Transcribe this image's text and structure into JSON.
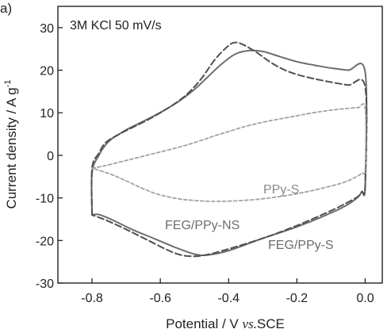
{
  "panel_label": "a)",
  "chart_data": {
    "type": "line",
    "annotation": "3M KCl 50 mV/s",
    "xlabel_prefix": "Potential / V ",
    "xlabel_vs": "vs.",
    "xlabel_suffix": "SCE",
    "ylabel_main": "Current density / A g",
    "ylabel_sup": "-1",
    "xlim": [
      -0.9,
      0.05
    ],
    "ylim": [
      -30,
      35
    ],
    "xticks": [
      -0.8,
      -0.6,
      -0.4,
      -0.2,
      0.0
    ],
    "xtick_labels": [
      "-0.8",
      "-0.6",
      "-0.4",
      "-0.2",
      "0.0"
    ],
    "yticks": [
      -30,
      -20,
      -10,
      0,
      10,
      20,
      30
    ],
    "ytick_labels": [
      "-30",
      "-20",
      "-10",
      "0",
      "10",
      "20",
      "30"
    ],
    "grid": false,
    "colors": {
      "solid": "#6d6d6d",
      "dashed": "#505050",
      "dotted": "#a2a2a2",
      "axis": "#222222",
      "label_grey": "#8a8a8a"
    },
    "series": [
      {
        "name": "FEG/PPy-S",
        "style": "solid",
        "x": [
          -0.8,
          -0.8,
          -0.78,
          -0.76,
          -0.74,
          -0.72,
          -0.7,
          -0.66,
          -0.62,
          -0.58,
          -0.54,
          -0.5,
          -0.46,
          -0.42,
          -0.38,
          -0.34,
          -0.3,
          -0.25,
          -0.2,
          -0.15,
          -0.1,
          -0.05,
          0.0,
          0.0,
          -0.01,
          -0.02,
          -0.05,
          -0.1,
          -0.2,
          -0.3,
          -0.4,
          -0.46,
          -0.5,
          -0.56,
          -0.62,
          -0.68,
          -0.74,
          -0.78,
          -0.8
        ],
        "y": [
          -14,
          -4,
          0,
          2.5,
          4,
          5,
          6,
          7.6,
          9.2,
          11,
          13,
          15.5,
          18.5,
          21.5,
          23.8,
          24.6,
          24.4,
          23.2,
          22.0,
          21.2,
          20.5,
          20.0,
          19.5,
          -7,
          -8.5,
          -9.7,
          -11.5,
          -13.5,
          -16.8,
          -19.5,
          -22.4,
          -23.4,
          -23.2,
          -21.5,
          -19.5,
          -17.5,
          -15.2,
          -13.9,
          -14
        ]
      },
      {
        "name": "FEG/PPy-NS",
        "style": "dashed",
        "x": [
          -0.8,
          -0.8,
          -0.78,
          -0.76,
          -0.72,
          -0.68,
          -0.64,
          -0.6,
          -0.56,
          -0.52,
          -0.48,
          -0.44,
          -0.4,
          -0.38,
          -0.36,
          -0.32,
          -0.28,
          -0.24,
          -0.2,
          -0.15,
          -0.1,
          -0.05,
          0.0,
          0.0,
          -0.01,
          -0.02,
          -0.05,
          -0.1,
          -0.2,
          -0.3,
          -0.4,
          -0.46,
          -0.5,
          -0.54,
          -0.58,
          -0.64,
          -0.7,
          -0.76,
          -0.8
        ],
        "y": [
          -14,
          -3,
          0.5,
          3,
          5,
          6.6,
          8.2,
          10,
          12,
          14.5,
          18,
          22.5,
          25.8,
          26.5,
          26.1,
          24.3,
          22.0,
          20.2,
          19.0,
          18.0,
          17.2,
          16.5,
          16,
          -7,
          -8.5,
          -9.6,
          -11,
          -13,
          -16.5,
          -19.5,
          -22.0,
          -23.3,
          -23.7,
          -23.4,
          -22.2,
          -19.8,
          -17.4,
          -15.2,
          -14
        ]
      },
      {
        "name": "PPy-S",
        "style": "dotted",
        "x": [
          -0.8,
          -0.76,
          -0.72,
          -0.68,
          -0.64,
          -0.6,
          -0.56,
          -0.52,
          -0.48,
          -0.44,
          -0.4,
          -0.36,
          -0.32,
          -0.28,
          -0.24,
          -0.2,
          -0.16,
          -0.12,
          -0.08,
          -0.04,
          -0.02,
          0.0,
          0.0,
          -0.01,
          -0.03,
          -0.06,
          -0.1,
          -0.14,
          -0.18,
          -0.22,
          -0.26,
          -0.3,
          -0.34,
          -0.38,
          -0.42,
          -0.46,
          -0.5,
          -0.54,
          -0.58,
          -0.62,
          -0.66,
          -0.7,
          -0.74,
          -0.78,
          -0.8
        ],
        "y": [
          -3,
          -2.4,
          -1.6,
          -0.8,
          0,
          0.8,
          1.6,
          2.5,
          3.5,
          4.6,
          5.6,
          6.6,
          7.4,
          8.1,
          8.7,
          9.3,
          9.9,
          10.4,
          10.8,
          11.1,
          11.2,
          11.0,
          -3,
          -4.2,
          -5.2,
          -6.3,
          -7.2,
          -8.0,
          -8.7,
          -9.3,
          -9.8,
          -10.2,
          -10.5,
          -10.7,
          -10.8,
          -10.8,
          -10.6,
          -10.3,
          -9.7,
          -8.8,
          -7.5,
          -6.0,
          -4.6,
          -3.5,
          -3
        ]
      }
    ]
  }
}
